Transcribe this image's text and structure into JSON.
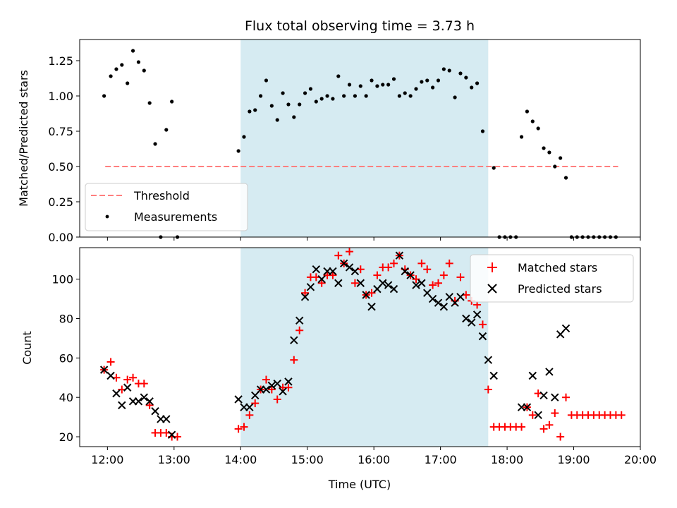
{
  "figure": {
    "title": "Flux total observing time = 3.73 h"
  },
  "colors": {
    "shade": "#add8e6",
    "threshold": "#ff7f7f",
    "measurement": "#000000",
    "matched": "#ff0000",
    "predicted": "#000000"
  },
  "chart_data": [
    {
      "type": "scatter",
      "subplot": "top",
      "xlabel": "",
      "ylabel": "Matched/Predicted stars",
      "xlim": [
        "11:35",
        "20:00"
      ],
      "ylim": [
        0.0,
        1.4
      ],
      "yticks": [
        "0.00",
        "0.25",
        "0.50",
        "0.75",
        "1.00",
        "1.25"
      ],
      "grid": false,
      "shaded_interval": [
        "14:00",
        "17:43"
      ],
      "legend": {
        "position": "lower-left",
        "entries": [
          "Threshold",
          "Measurements"
        ]
      },
      "series": [
        {
          "name": "Threshold",
          "style": "dashed-line",
          "points": [
            [
              "11:58",
              0.5
            ],
            [
              "19:40",
              0.5
            ]
          ]
        },
        {
          "name": "Measurements",
          "style": "dot",
          "points": [
            [
              "11:57",
              1.0
            ],
            [
              "12:03",
              1.14
            ],
            [
              "12:08",
              1.19
            ],
            [
              "12:13",
              1.22
            ],
            [
              "12:18",
              1.09
            ],
            [
              "12:23",
              1.32
            ],
            [
              "12:28",
              1.24
            ],
            [
              "12:33",
              1.18
            ],
            [
              "12:38",
              0.95
            ],
            [
              "12:43",
              0.66
            ],
            [
              "12:48",
              0.0
            ],
            [
              "12:53",
              0.76
            ],
            [
              "12:58",
              0.96
            ],
            [
              "13:03",
              0.0
            ],
            [
              "13:58",
              0.61
            ],
            [
              "14:03",
              0.71
            ],
            [
              "14:08",
              0.89
            ],
            [
              "14:13",
              0.9
            ],
            [
              "14:18",
              1.0
            ],
            [
              "14:23",
              1.11
            ],
            [
              "14:28",
              0.93
            ],
            [
              "14:33",
              0.83
            ],
            [
              "14:38",
              1.02
            ],
            [
              "14:43",
              0.94
            ],
            [
              "14:48",
              0.85
            ],
            [
              "14:53",
              0.94
            ],
            [
              "14:58",
              1.02
            ],
            [
              "15:03",
              1.05
            ],
            [
              "15:08",
              0.96
            ],
            [
              "15:13",
              0.98
            ],
            [
              "15:18",
              1.0
            ],
            [
              "15:23",
              0.98
            ],
            [
              "15:28",
              1.14
            ],
            [
              "15:33",
              1.0
            ],
            [
              "15:38",
              1.08
            ],
            [
              "15:43",
              1.0
            ],
            [
              "15:48",
              1.07
            ],
            [
              "15:53",
              1.0
            ],
            [
              "15:58",
              1.11
            ],
            [
              "16:03",
              1.07
            ],
            [
              "16:08",
              1.08
            ],
            [
              "16:13",
              1.08
            ],
            [
              "16:18",
              1.12
            ],
            [
              "16:23",
              1.0
            ],
            [
              "16:28",
              1.02
            ],
            [
              "16:33",
              1.0
            ],
            [
              "16:38",
              1.05
            ],
            [
              "16:43",
              1.1
            ],
            [
              "16:48",
              1.11
            ],
            [
              "16:53",
              1.06
            ],
            [
              "16:58",
              1.11
            ],
            [
              "17:03",
              1.19
            ],
            [
              "17:08",
              1.18
            ],
            [
              "17:13",
              0.99
            ],
            [
              "17:18",
              1.16
            ],
            [
              "17:23",
              1.13
            ],
            [
              "17:28",
              1.06
            ],
            [
              "17:33",
              1.09
            ],
            [
              "17:38",
              0.75
            ],
            [
              "17:48",
              0.49
            ],
            [
              "17:53",
              0.0
            ],
            [
              "17:58",
              0.0
            ],
            [
              "18:03",
              0.0
            ],
            [
              "18:08",
              0.0
            ],
            [
              "18:13",
              0.71
            ],
            [
              "18:18",
              0.89
            ],
            [
              "18:23",
              0.82
            ],
            [
              "18:28",
              0.77
            ],
            [
              "18:33",
              0.63
            ],
            [
              "18:38",
              0.6
            ],
            [
              "18:43",
              0.5
            ],
            [
              "18:48",
              0.56
            ],
            [
              "18:53",
              0.42
            ],
            [
              "18:58",
              0.0
            ],
            [
              "19:03",
              0.0
            ],
            [
              "19:08",
              0.0
            ],
            [
              "19:13",
              0.0
            ],
            [
              "19:18",
              0.0
            ],
            [
              "19:23",
              0.0
            ],
            [
              "19:28",
              0.0
            ],
            [
              "19:33",
              0.0
            ],
            [
              "19:38",
              0.0
            ]
          ]
        }
      ]
    },
    {
      "type": "scatter",
      "subplot": "bottom",
      "xlabel": "Time (UTC)",
      "ylabel": "Count",
      "xlim": [
        "11:35",
        "20:00"
      ],
      "ylim": [
        15,
        116
      ],
      "xticks": [
        "12:00",
        "13:00",
        "14:00",
        "15:00",
        "16:00",
        "17:00",
        "18:00",
        "19:00",
        "20:00"
      ],
      "yticks": [
        "20",
        "40",
        "60",
        "80",
        "100"
      ],
      "grid": false,
      "shaded_interval": [
        "14:00",
        "17:43"
      ],
      "legend": {
        "position": "top-right",
        "entries": [
          "Matched stars",
          "Predicted stars"
        ]
      },
      "series": [
        {
          "name": "Matched stars",
          "marker": "+",
          "points": [
            [
              "11:57",
              54
            ],
            [
              "12:03",
              58
            ],
            [
              "12:08",
              50
            ],
            [
              "12:13",
              44
            ],
            [
              "12:18",
              49
            ],
            [
              "12:23",
              50
            ],
            [
              "12:28",
              47
            ],
            [
              "12:33",
              47
            ],
            [
              "12:38",
              36
            ],
            [
              "12:43",
              22
            ],
            [
              "12:48",
              22
            ],
            [
              "12:53",
              22
            ],
            [
              "12:58",
              20
            ],
            [
              "13:03",
              20
            ],
            [
              "13:58",
              24
            ],
            [
              "14:03",
              25
            ],
            [
              "14:08",
              31
            ],
            [
              "14:13",
              37
            ],
            [
              "14:18",
              44
            ],
            [
              "14:23",
              49
            ],
            [
              "14:28",
              44
            ],
            [
              "14:33",
              39
            ],
            [
              "14:38",
              45
            ],
            [
              "14:43",
              45
            ],
            [
              "14:48",
              59
            ],
            [
              "14:53",
              74
            ],
            [
              "14:58",
              93
            ],
            [
              "15:03",
              101
            ],
            [
              "15:08",
              101
            ],
            [
              "15:13",
              98
            ],
            [
              "15:18",
              102
            ],
            [
              "15:23",
              102
            ],
            [
              "15:28",
              112
            ],
            [
              "15:33",
              108
            ],
            [
              "15:38",
              114
            ],
            [
              "15:43",
              98
            ],
            [
              "15:48",
              105
            ],
            [
              "15:53",
              92
            ],
            [
              "15:58",
              93
            ],
            [
              "16:03",
              102
            ],
            [
              "16:08",
              106
            ],
            [
              "16:13",
              106
            ],
            [
              "16:18",
              108
            ],
            [
              "16:23",
              112
            ],
            [
              "16:28",
              105
            ],
            [
              "16:33",
              102
            ],
            [
              "16:38",
              100
            ],
            [
              "16:43",
              108
            ],
            [
              "16:48",
              105
            ],
            [
              "16:53",
              97
            ],
            [
              "16:58",
              98
            ],
            [
              "17:03",
              102
            ],
            [
              "17:08",
              108
            ],
            [
              "17:13",
              89
            ],
            [
              "17:18",
              101
            ],
            [
              "17:23",
              92
            ],
            [
              "17:28",
              89
            ],
            [
              "17:33",
              87
            ],
            [
              "17:38",
              77
            ],
            [
              "17:43",
              44
            ],
            [
              "17:48",
              25
            ],
            [
              "17:53",
              25
            ],
            [
              "17:58",
              25
            ],
            [
              "18:03",
              25
            ],
            [
              "18:08",
              25
            ],
            [
              "18:13",
              25
            ],
            [
              "18:18",
              35
            ],
            [
              "18:23",
              31
            ],
            [
              "18:28",
              42
            ],
            [
              "18:33",
              24
            ],
            [
              "18:38",
              26
            ],
            [
              "18:43",
              32
            ],
            [
              "18:48",
              20
            ],
            [
              "18:53",
              40
            ],
            [
              "18:58",
              31
            ],
            [
              "19:03",
              31
            ],
            [
              "19:08",
              31
            ],
            [
              "19:13",
              31
            ],
            [
              "19:18",
              31
            ],
            [
              "19:23",
              31
            ],
            [
              "19:28",
              31
            ],
            [
              "19:33",
              31
            ],
            [
              "19:38",
              31
            ],
            [
              "19:43",
              31
            ]
          ]
        },
        {
          "name": "Predicted stars",
          "marker": "x",
          "points": [
            [
              "11:57",
              54
            ],
            [
              "12:03",
              51
            ],
            [
              "12:08",
              42
            ],
            [
              "12:13",
              36
            ],
            [
              "12:18",
              45
            ],
            [
              "12:23",
              38
            ],
            [
              "12:28",
              38
            ],
            [
              "12:33",
              40
            ],
            [
              "12:38",
              38
            ],
            [
              "12:43",
              33
            ],
            [
              "12:48",
              29
            ],
            [
              "12:53",
              29
            ],
            [
              "12:58",
              21
            ],
            [
              "13:58",
              39
            ],
            [
              "14:03",
              35
            ],
            [
              "14:08",
              35
            ],
            [
              "14:13",
              41
            ],
            [
              "14:18",
              44
            ],
            [
              "14:23",
              44
            ],
            [
              "14:28",
              46
            ],
            [
              "14:33",
              47
            ],
            [
              "14:38",
              43
            ],
            [
              "14:43",
              48
            ],
            [
              "14:48",
              69
            ],
            [
              "14:53",
              79
            ],
            [
              "14:58",
              91
            ],
            [
              "15:03",
              96
            ],
            [
              "15:08",
              105
            ],
            [
              "15:13",
              100
            ],
            [
              "15:18",
              104
            ],
            [
              "15:23",
              104
            ],
            [
              "15:28",
              98
            ],
            [
              "15:33",
              108
            ],
            [
              "15:38",
              106
            ],
            [
              "15:43",
              104
            ],
            [
              "15:48",
              98
            ],
            [
              "15:53",
              92
            ],
            [
              "15:58",
              86
            ],
            [
              "16:03",
              95
            ],
            [
              "16:08",
              98
            ],
            [
              "16:13",
              97
            ],
            [
              "16:18",
              95
            ],
            [
              "16:23",
              112
            ],
            [
              "16:28",
              104
            ],
            [
              "16:33",
              102
            ],
            [
              "16:38",
              97
            ],
            [
              "16:43",
              98
            ],
            [
              "16:48",
              93
            ],
            [
              "16:53",
              90
            ],
            [
              "16:58",
              88
            ],
            [
              "17:03",
              86
            ],
            [
              "17:08",
              91
            ],
            [
              "17:13",
              88
            ],
            [
              "17:18",
              91
            ],
            [
              "17:23",
              80
            ],
            [
              "17:28",
              78
            ],
            [
              "17:33",
              82
            ],
            [
              "17:38",
              71
            ],
            [
              "17:43",
              59
            ],
            [
              "17:48",
              51
            ],
            [
              "18:13",
              35
            ],
            [
              "18:18",
              35
            ],
            [
              "18:23",
              51
            ],
            [
              "18:28",
              31
            ],
            [
              "18:33",
              41
            ],
            [
              "18:38",
              53
            ],
            [
              "18:43",
              40
            ],
            [
              "18:48",
              72
            ],
            [
              "18:53",
              75
            ]
          ]
        }
      ]
    }
  ]
}
